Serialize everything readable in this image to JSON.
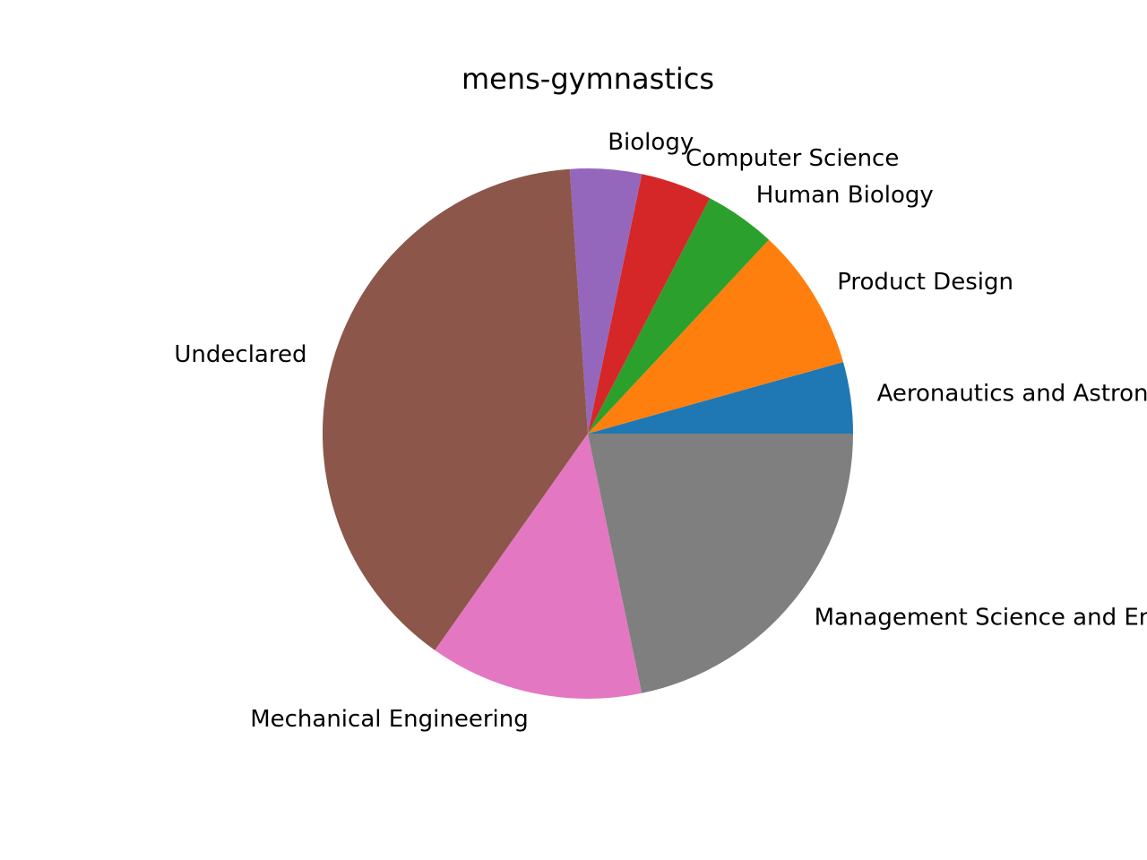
{
  "chart_data": {
    "type": "pie",
    "title": "mens-gymnastics",
    "start_angle_deg": 0,
    "direction": "counterclockwise",
    "slices": [
      {
        "label": "Aeronautics and Astronautics",
        "value": 1,
        "color": "#1f77b4"
      },
      {
        "label": "Product Design",
        "value": 2,
        "color": "#ff7f0e"
      },
      {
        "label": "Human Biology",
        "value": 1,
        "color": "#2ca02c"
      },
      {
        "label": "Computer Science",
        "value": 1,
        "color": "#d62728"
      },
      {
        "label": "Biology",
        "value": 1,
        "color": "#9467bd"
      },
      {
        "label": "Undeclared",
        "value": 9,
        "color": "#8c564b"
      },
      {
        "label": "Mechanical Engineering",
        "value": 3,
        "color": "#e377c2"
      },
      {
        "label": "Management Science and Engineering",
        "value": 5,
        "color": "#7f7f7f"
      }
    ]
  }
}
